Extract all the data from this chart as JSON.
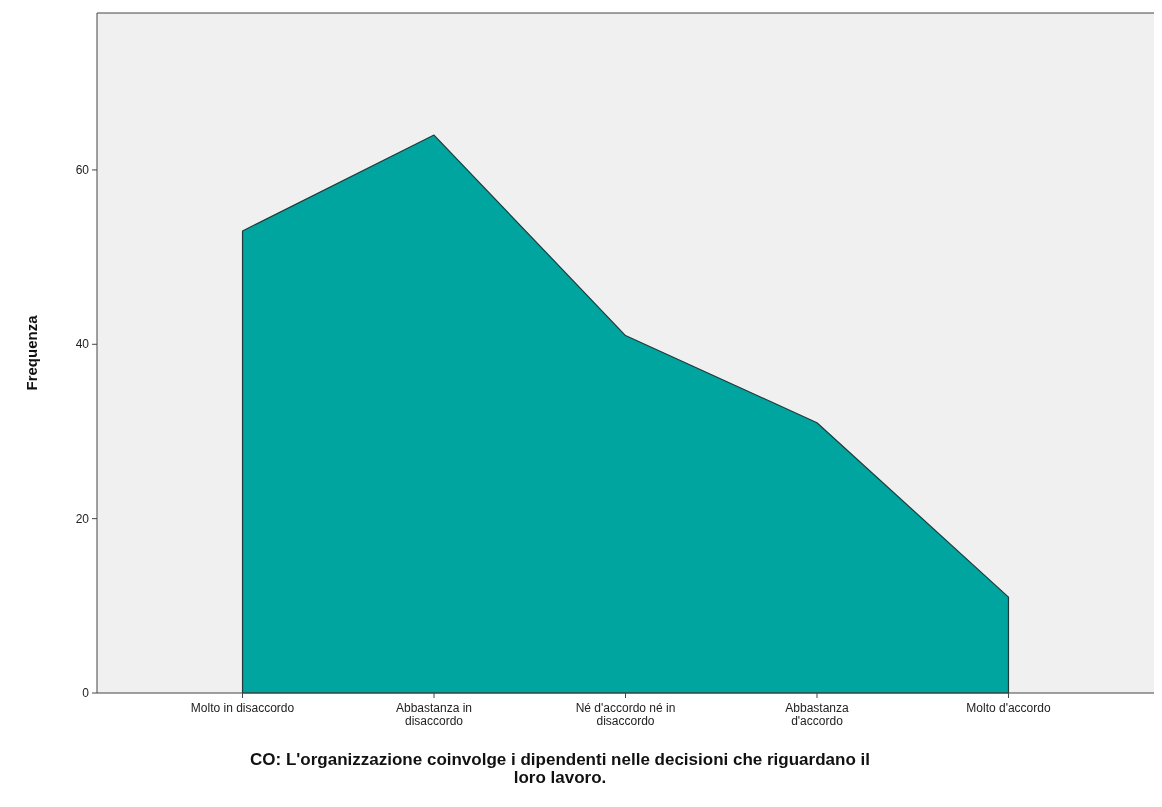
{
  "chart_data": {
    "type": "area",
    "xlabel": "CO: L'organizzazione coinvolge i dipendenti nelle decisioni che riguardano il loro lavoro.",
    "ylabel": "Frequenza",
    "categories": [
      "Molto in disaccordo",
      "Abbastanza in disaccordo",
      "Né d'accordo né in disaccordo",
      "Abbastanza d'accordo",
      "Molto d'accordo"
    ],
    "values": [
      53,
      64,
      41,
      31,
      11
    ],
    "color": "#00a5a0",
    "ylim": [
      0,
      78
    ],
    "yticks": [
      0,
      20,
      40,
      60
    ],
    "grid": false
  }
}
